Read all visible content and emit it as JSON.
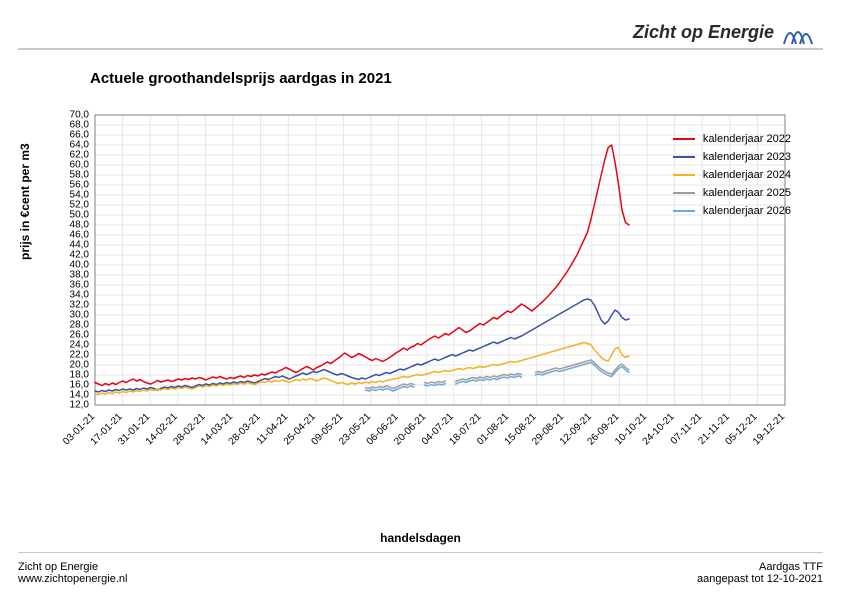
{
  "brand": "Zicht op Energie",
  "chart": {
    "type": "line",
    "title": "Actuele groothandelsprijs aardgas in 2021",
    "xlabel": "handelsdagen",
    "ylabel": "prijs in €cent per m3",
    "title_fontsize": 15,
    "label_fontsize": 12,
    "tick_fontsize": 10,
    "background_color": "#ffffff",
    "grid_color": "#e6e6e6",
    "axis_color": "#808080",
    "ylim": [
      12,
      70
    ],
    "ytick_step": 2,
    "xcategories": [
      "03-01-21",
      "17-01-21",
      "31-01-21",
      "14-02-21",
      "28-02-21",
      "14-03-21",
      "28-03-21",
      "11-04-21",
      "25-04-21",
      "09-05-21",
      "23-05-21",
      "06-06-21",
      "20-06-21",
      "04-07-21",
      "18-07-21",
      "01-08-21",
      "15-08-21",
      "29-08-21",
      "12-09-21",
      "26-09-21",
      "10-10-21",
      "24-10-21",
      "07-11-21",
      "21-11-21",
      "05-12-21",
      "19-12-21"
    ],
    "n_points": 200,
    "last_point_index": 154,
    "line_width": 1.5,
    "legend_position": "top-right",
    "series": [
      {
        "label": "kalenderjaar 2022",
        "color": "#e30613",
        "y": [
          16.5,
          16.2,
          15.9,
          16.3,
          16.0,
          16.4,
          16.1,
          16.5,
          16.8,
          16.5,
          16.9,
          17.2,
          16.8,
          17.1,
          16.7,
          16.4,
          16.2,
          16.5,
          16.9,
          16.6,
          16.8,
          17.0,
          16.7,
          16.9,
          17.2,
          17.0,
          17.3,
          17.1,
          17.4,
          17.2,
          17.5,
          17.3,
          17.0,
          17.3,
          17.6,
          17.4,
          17.7,
          17.4,
          17.2,
          17.5,
          17.3,
          17.6,
          17.8,
          17.5,
          17.9,
          17.7,
          18.0,
          17.8,
          18.2,
          18.0,
          18.3,
          18.6,
          18.4,
          18.8,
          19.1,
          19.5,
          19.2,
          18.8,
          18.5,
          18.9,
          19.3,
          19.7,
          19.4,
          19.0,
          19.5,
          19.8,
          20.2,
          20.6,
          20.3,
          20.8,
          21.3,
          21.8,
          22.4,
          22.0,
          21.5,
          21.8,
          22.3,
          22.0,
          21.6,
          21.2,
          20.9,
          21.3,
          21.0,
          20.7,
          21.1,
          21.5,
          22.0,
          22.5,
          22.9,
          23.4,
          23.0,
          23.5,
          23.8,
          24.3,
          24.0,
          24.5,
          25.0,
          25.4,
          25.8,
          25.4,
          25.8,
          26.3,
          26.0,
          26.5,
          27.0,
          27.5,
          27.0,
          26.5,
          26.8,
          27.3,
          27.8,
          28.3,
          28.0,
          28.5,
          29.0,
          29.5,
          29.2,
          29.8,
          30.3,
          30.8,
          30.5,
          31.0,
          31.6,
          32.2,
          31.8,
          31.3,
          30.8,
          31.4,
          32.0,
          32.6,
          33.3,
          34.0,
          34.8,
          35.6,
          36.5,
          37.5,
          38.5,
          39.6,
          40.8,
          42.0,
          43.5,
          45.0,
          46.5,
          49.0,
          52.0,
          55.0,
          58.0,
          61.0,
          63.5,
          64.0,
          60.5,
          56.0,
          51.0,
          48.5,
          48.0
        ]
      },
      {
        "label": "kalenderjaar 2023",
        "color": "#3953a4",
        "y": [
          14.8,
          14.6,
          14.9,
          14.7,
          15.0,
          14.8,
          15.1,
          14.9,
          15.2,
          15.0,
          15.2,
          15.0,
          15.3,
          15.1,
          15.4,
          15.2,
          15.5,
          15.3,
          15.0,
          15.3,
          15.6,
          15.4,
          15.7,
          15.5,
          15.8,
          15.6,
          15.9,
          15.7,
          15.5,
          15.8,
          16.1,
          15.9,
          16.2,
          16.0,
          16.3,
          16.1,
          16.4,
          16.2,
          16.5,
          16.3,
          16.6,
          16.4,
          16.7,
          16.5,
          16.8,
          16.6,
          16.4,
          16.7,
          17.0,
          17.3,
          17.1,
          17.4,
          17.7,
          17.5,
          17.8,
          17.5,
          17.2,
          17.5,
          17.8,
          18.1,
          18.4,
          18.1,
          18.4,
          18.7,
          18.5,
          18.8,
          19.1,
          18.8,
          18.5,
          18.2,
          18.0,
          18.3,
          18.1,
          17.8,
          17.5,
          17.3,
          17.1,
          17.4,
          17.2,
          17.5,
          17.8,
          18.1,
          17.9,
          18.2,
          18.5,
          18.3,
          18.6,
          18.9,
          19.2,
          19.0,
          19.3,
          19.6,
          19.9,
          20.2,
          20.0,
          20.3,
          20.6,
          20.9,
          21.2,
          20.9,
          21.2,
          21.5,
          21.8,
          22.1,
          21.8,
          22.1,
          22.4,
          22.7,
          23.0,
          22.8,
          23.1,
          23.4,
          23.7,
          24.0,
          24.3,
          24.6,
          24.3,
          24.6,
          24.9,
          25.2,
          25.5,
          25.2,
          25.5,
          25.8,
          26.2,
          26.6,
          27.0,
          27.4,
          27.8,
          28.2,
          28.6,
          29.0,
          29.4,
          29.8,
          30.2,
          30.6,
          31.0,
          31.4,
          31.8,
          32.2,
          32.6,
          33.0,
          33.2,
          33.0,
          32.0,
          30.5,
          29.0,
          28.2,
          28.8,
          30.0,
          31.0,
          30.5,
          29.5,
          29.0,
          29.2
        ]
      },
      {
        "label": "kalenderjaar 2024",
        "color": "#f0b323",
        "y": [
          14.3,
          14.1,
          14.4,
          14.2,
          14.5,
          14.3,
          14.6,
          14.4,
          14.7,
          14.5,
          14.8,
          14.6,
          14.9,
          14.7,
          15.0,
          14.8,
          15.1,
          14.9,
          15.2,
          15.0,
          15.3,
          15.1,
          15.4,
          15.2,
          15.5,
          15.3,
          15.6,
          15.4,
          15.2,
          15.5,
          15.8,
          15.6,
          15.9,
          15.7,
          16.0,
          15.8,
          16.1,
          15.9,
          16.2,
          16.0,
          16.3,
          16.1,
          16.4,
          16.2,
          16.5,
          16.3,
          16.1,
          16.4,
          16.7,
          16.5,
          16.8,
          16.6,
          16.9,
          16.7,
          17.0,
          16.8,
          16.5,
          16.8,
          17.1,
          16.9,
          17.2,
          17.0,
          17.3,
          17.1,
          16.8,
          17.1,
          17.4,
          17.2,
          16.9,
          16.6,
          16.3,
          16.5,
          16.3,
          16.1,
          16.4,
          16.2,
          16.5,
          16.3,
          16.6,
          16.4,
          16.7,
          16.5,
          16.8,
          16.6,
          16.9,
          17.0,
          17.2,
          17.3,
          17.5,
          17.7,
          17.5,
          17.7,
          17.9,
          18.1,
          17.9,
          18.1,
          18.3,
          18.5,
          18.7,
          18.5,
          18.7,
          18.9,
          18.7,
          18.9,
          19.1,
          19.3,
          19.1,
          19.3,
          19.5,
          19.3,
          19.5,
          19.7,
          19.5,
          19.7,
          19.9,
          20.1,
          19.9,
          20.1,
          20.3,
          20.5,
          20.7,
          20.5,
          20.7,
          20.9,
          21.1,
          21.3,
          21.5,
          21.7,
          21.9,
          22.1,
          22.3,
          22.5,
          22.7,
          22.9,
          23.1,
          23.3,
          23.5,
          23.7,
          23.9,
          24.1,
          24.3,
          24.5,
          24.3,
          24.1,
          23.0,
          22.3,
          21.5,
          21.0,
          20.8,
          22.0,
          23.3,
          23.5,
          22.0,
          21.5,
          21.8
        ]
      },
      {
        "label": "kalenderjaar 2025",
        "color": "#9e9e9e",
        "start_index": 78,
        "y": [
          15.5,
          15.3,
          15.6,
          15.4,
          15.7,
          15.5,
          15.8,
          15.6,
          15.3,
          15.6,
          15.9,
          16.2,
          16.0,
          16.3,
          16.1,
          null,
          null,
          16.5,
          16.3,
          16.6,
          16.4,
          16.7,
          16.5,
          16.8,
          null,
          null,
          16.7,
          17.0,
          17.2,
          17.0,
          17.3,
          17.5,
          17.3,
          17.6,
          17.4,
          17.7,
          17.5,
          17.8,
          17.6,
          17.9,
          18.1,
          17.9,
          18.2,
          18.0,
          18.3,
          18.1,
          null,
          null,
          null,
          18.5,
          18.7,
          18.5,
          18.8,
          19.0,
          19.2,
          19.4,
          19.2,
          19.4,
          19.6,
          19.8,
          20.0,
          20.2,
          20.4,
          20.6,
          20.8,
          21.0,
          20.5,
          19.8,
          19.2,
          18.8,
          18.4,
          18.2,
          19.0,
          19.8,
          20.2,
          19.5,
          19.0
        ]
      },
      {
        "label": "kalenderjaar 2026",
        "color": "#6fa8dc",
        "start_index": 78,
        "y": [
          15.0,
          14.8,
          15.1,
          14.9,
          15.2,
          15.0,
          15.3,
          15.1,
          14.8,
          15.1,
          15.4,
          15.7,
          15.5,
          15.8,
          15.6,
          null,
          null,
          16.0,
          15.8,
          16.1,
          15.9,
          16.2,
          16.0,
          16.3,
          null,
          null,
          16.2,
          16.5,
          16.7,
          16.5,
          16.8,
          17.0,
          16.8,
          17.1,
          16.9,
          17.2,
          17.0,
          17.3,
          17.1,
          17.4,
          17.6,
          17.4,
          17.7,
          17.5,
          17.8,
          17.6,
          null,
          null,
          null,
          18.0,
          18.2,
          18.0,
          18.3,
          18.5,
          18.7,
          18.9,
          18.7,
          18.9,
          19.1,
          19.3,
          19.5,
          19.7,
          19.9,
          20.1,
          20.3,
          20.5,
          20.0,
          19.3,
          18.7,
          18.3,
          17.9,
          17.7,
          18.5,
          19.3,
          19.7,
          19.0,
          18.5
        ]
      }
    ]
  },
  "footer": {
    "left1": "Zicht op Energie",
    "left2": "www.zichtopenergie.nl",
    "right1": "Aardgas TTF",
    "right2": "aangepast tot 12-10-2021"
  },
  "layout": {
    "frame_rule_color": "#c9c9c9"
  }
}
